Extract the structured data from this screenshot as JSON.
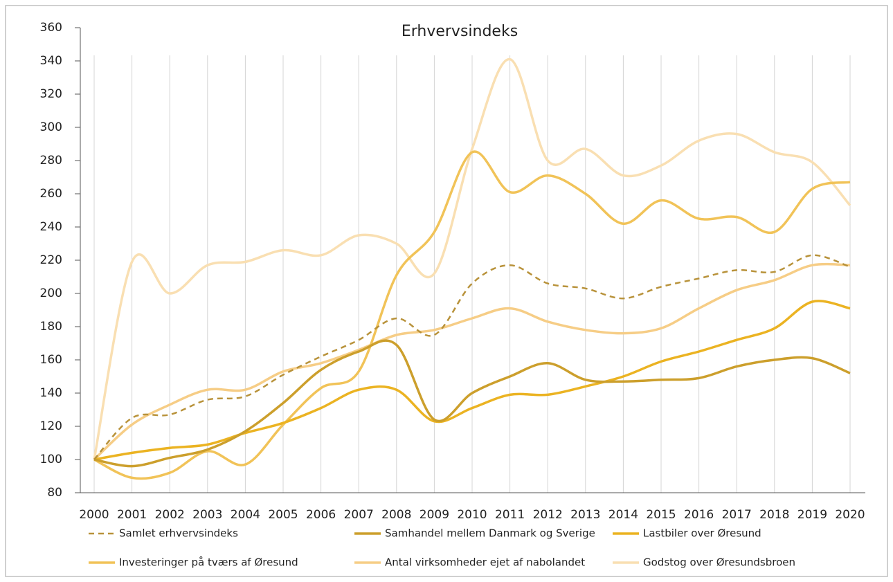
{
  "chart_data": {
    "type": "line",
    "title": "Erhvervsindeks",
    "categories": [
      "2000",
      "2001",
      "2002",
      "2003",
      "2004",
      "2005",
      "2006",
      "2007",
      "2008",
      "2009",
      "2010",
      "2011",
      "2012",
      "2013",
      "2014",
      "2015",
      "2016",
      "2017",
      "2018",
      "2019",
      "2020"
    ],
    "ylim": [
      80,
      360
    ],
    "yticks": [
      80,
      100,
      120,
      140,
      160,
      180,
      200,
      220,
      240,
      260,
      280,
      300,
      320,
      340,
      360
    ],
    "grid": true,
    "legend": "bottom",
    "series": [
      {
        "name": "Samlet erhvervsindeks",
        "color": "#b8923a",
        "dashed": true,
        "values": [
          100,
          125,
          127,
          136,
          138,
          151,
          162,
          172,
          185,
          175,
          206,
          217,
          206,
          203,
          197,
          204,
          209,
          214,
          213,
          223,
          216
        ]
      },
      {
        "name": "Samhandel mellem Danmark og Sverige",
        "color": "#cc9f2c",
        "values": [
          100,
          96,
          101,
          106,
          117,
          134,
          154,
          165,
          169,
          124,
          140,
          150,
          158,
          148,
          147,
          148,
          149,
          156,
          160,
          161,
          152
        ]
      },
      {
        "name": "Lastbiler over Øresund",
        "color": "#ebb322",
        "values": [
          100,
          104,
          107,
          109,
          116,
          122,
          131,
          142,
          142,
          123,
          131,
          139,
          139,
          144,
          150,
          159,
          165,
          172,
          179,
          195,
          191
        ]
      },
      {
        "name": "Investeringer på tværs af Øresund",
        "color": "#f1c358",
        "values": [
          100,
          89,
          92,
          105,
          97,
          121,
          143,
          153,
          211,
          237,
          285,
          261,
          271,
          260,
          242,
          256,
          245,
          246,
          237,
          263,
          267
        ]
      },
      {
        "name": "Antal virksomheder ejet af nabolandet",
        "color": "#f6cd86",
        "values": [
          100,
          121,
          133,
          142,
          142,
          153,
          158,
          166,
          175,
          178,
          185,
          191,
          183,
          178,
          176,
          179,
          191,
          202,
          208,
          217,
          217
        ]
      },
      {
        "name": "Godstog over Øresundsbroen",
        "color": "#f9dfb2",
        "values": [
          100,
          219,
          200,
          217,
          219,
          226,
          223,
          235,
          230,
          212,
          287,
          341,
          280,
          287,
          271,
          277,
          292,
          296,
          285,
          279,
          253
        ]
      }
    ]
  }
}
